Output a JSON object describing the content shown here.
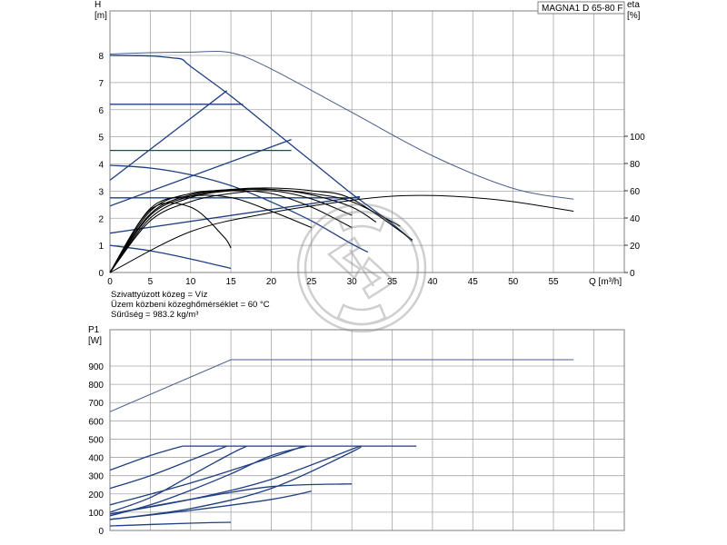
{
  "chart_data": [
    {
      "type": "line",
      "title": "MAGNA1 D 65-80 F",
      "xlabel": "Q [m³/h]",
      "ylabel": "H\n[m]",
      "y2label": "eta\n[%]",
      "xlim": [
        0,
        63
      ],
      "ylim": [
        0,
        8.7
      ],
      "y2lim": [
        0,
        120
      ],
      "x_ticks": [
        0,
        5,
        10,
        15,
        20,
        25,
        30,
        35,
        40,
        45,
        50,
        55
      ],
      "y_ticks": [
        0,
        1,
        2,
        3,
        4,
        5,
        6,
        7,
        8
      ],
      "y2_ticks": [
        0,
        20,
        40,
        60,
        80,
        100
      ],
      "grid": true,
      "info_lines": [
        "Szivattyúzott közeg = Víz",
        "Üzem közbeni közeghőmérséklet = 60 °C",
        "Sűrűség = 983.2 kg/m³"
      ],
      "series": [
        {
          "kind": "head-max-twin",
          "color": "#4a5f8c",
          "x": [
            0,
            5,
            10,
            15,
            20,
            30,
            40,
            50,
            57.5
          ],
          "y": [
            8.05,
            8.1,
            8.12,
            8.1,
            7.5,
            5.9,
            4.3,
            3.1,
            2.7
          ]
        },
        {
          "kind": "head-prop-max",
          "color": "#1f3f82",
          "x": [
            0,
            5,
            8,
            9,
            10,
            15,
            20,
            25,
            30,
            35,
            37.5
          ],
          "y": [
            8,
            7.98,
            7.9,
            7.85,
            7.6,
            6.5,
            5.3,
            4.1,
            2.9,
            1.8,
            1.15
          ]
        },
        {
          "kind": "const-pressure",
          "color": "#1f3f82",
          "x": [
            0,
            16.5
          ],
          "y": [
            6.2,
            6.2
          ]
        },
        {
          "kind": "const-pressure",
          "color": "#1f3f82",
          "x": [
            0,
            22.5
          ],
          "y": [
            4.5,
            4.5
          ]
        },
        {
          "kind": "const-pressure",
          "color": "#1f3f82",
          "x": [
            0,
            31
          ],
          "y": [
            2.75,
            2.75
          ]
        },
        {
          "kind": "prop-pressure",
          "color": "#1f3f82",
          "x": [
            0,
            14.5
          ],
          "y": [
            3.4,
            6.7
          ]
        },
        {
          "kind": "prop-pressure",
          "color": "#1f3f82",
          "x": [
            0,
            22.5
          ],
          "y": [
            2.45,
            4.9
          ]
        },
        {
          "kind": "prop-pressure",
          "color": "#1f3f82",
          "x": [
            0,
            31
          ],
          "y": [
            1.45,
            2.8
          ]
        },
        {
          "kind": "min-curve",
          "color": "#1f3f82",
          "x": [
            0,
            5,
            10,
            15,
            20,
            25,
            30,
            32
          ],
          "y": [
            3.95,
            3.85,
            3.6,
            3.2,
            2.6,
            1.9,
            1.05,
            0.75
          ]
        },
        {
          "kind": "min-curve",
          "color": "#1f3f82",
          "x": [
            0,
            5,
            10,
            15
          ],
          "y": [
            1.0,
            0.8,
            0.5,
            0.15
          ]
        },
        {
          "kind": "eta-twin",
          "color": "#000000",
          "x": [
            0,
            10,
            20,
            30,
            35,
            40,
            45,
            50,
            57.5
          ],
          "y": [
            0,
            30,
            44,
            53,
            56,
            56.5,
            55,
            52,
            45
          ]
        },
        {
          "kind": "eta",
          "color": "#000000",
          "x": [
            0,
            5,
            10,
            15,
            20,
            25,
            30,
            33
          ],
          "y": [
            0,
            40,
            55,
            60,
            61,
            57,
            48,
            37
          ]
        },
        {
          "kind": "eta",
          "color": "#000000",
          "x": [
            0,
            5,
            10,
            15,
            20,
            25,
            30,
            36
          ],
          "y": [
            0,
            42,
            56,
            60.5,
            61,
            58,
            52,
            34
          ]
        },
        {
          "kind": "eta",
          "color": "#000000",
          "x": [
            0,
            5,
            10,
            15,
            20,
            25,
            30,
            37.5
          ],
          "y": [
            0,
            43,
            57,
            61,
            62,
            60,
            54,
            24
          ]
        },
        {
          "kind": "eta",
          "color": "#000000",
          "x": [
            0,
            5,
            10,
            15,
            20,
            25,
            30
          ],
          "y": [
            0,
            45,
            58,
            60,
            58,
            48,
            33
          ]
        },
        {
          "kind": "eta",
          "color": "#000000",
          "x": [
            0,
            5,
            10,
            15,
            20,
            25
          ],
          "y": [
            0,
            47,
            56,
            55,
            45,
            33
          ]
        },
        {
          "kind": "eta",
          "color": "#000000",
          "x": [
            0,
            5,
            10,
            14,
            15
          ],
          "y": [
            0,
            46,
            48,
            27,
            18
          ]
        },
        {
          "kind": "eta",
          "color": "#000000",
          "x": [
            0,
            5,
            10,
            15,
            20,
            25,
            30
          ],
          "y": [
            0,
            38,
            52,
            58,
            60,
            54,
            42
          ]
        }
      ]
    },
    {
      "type": "line",
      "title": "",
      "xlabel": "",
      "ylabel": "P1\n[W]",
      "xlim": [
        0,
        63
      ],
      "ylim": [
        0,
        1000
      ],
      "y_ticks": [
        0,
        100,
        200,
        300,
        400,
        500,
        600,
        700,
        800,
        900
      ],
      "grid": true,
      "series": [
        {
          "kind": "p1-max-twin",
          "color": "#4a5f8c",
          "x": [
            0,
            15,
            57.5
          ],
          "y": [
            650,
            935,
            935
          ]
        },
        {
          "kind": "p1-max",
          "color": "#1f3f82",
          "x": [
            9,
            38
          ],
          "y": [
            462,
            462
          ]
        },
        {
          "kind": "p1",
          "color": "#1f3f82",
          "x": [
            0,
            5,
            9
          ],
          "y": [
            330,
            410,
            462
          ]
        },
        {
          "kind": "p1",
          "color": "#1f3f82",
          "x": [
            0,
            5,
            10,
            14.5
          ],
          "y": [
            230,
            300,
            385,
            462
          ]
        },
        {
          "kind": "p1",
          "color": "#1f3f82",
          "x": [
            0,
            10,
            20,
            24
          ],
          "y": [
            140,
            260,
            400,
            462
          ]
        },
        {
          "kind": "p1",
          "color": "#1f3f82",
          "x": [
            0,
            10,
            20,
            31
          ],
          "y": [
            90,
            170,
            280,
            462
          ]
        },
        {
          "kind": "p1",
          "color": "#1f3f82",
          "x": [
            0,
            5,
            10,
            15,
            17
          ],
          "y": [
            100,
            180,
            300,
            420,
            462
          ]
        },
        {
          "kind": "p1",
          "color": "#1f3f82",
          "x": [
            0,
            5,
            10,
            15,
            20,
            24.5
          ],
          "y": [
            80,
            140,
            220,
            310,
            410,
            462
          ]
        },
        {
          "kind": "p1",
          "color": "#1f3f82",
          "x": [
            0,
            10,
            20,
            30,
            31
          ],
          "y": [
            60,
            120,
            230,
            430,
            462
          ]
        },
        {
          "kind": "p1",
          "color": "#1f3f82",
          "x": [
            0,
            10,
            20,
            30
          ],
          "y": [
            90,
            170,
            240,
            255
          ]
        },
        {
          "kind": "p1",
          "color": "#1f3f82",
          "x": [
            0,
            10,
            20,
            25
          ],
          "y": [
            60,
            110,
            170,
            215
          ]
        },
        {
          "kind": "p1",
          "color": "#1f3f82",
          "x": [
            0,
            10,
            15
          ],
          "y": [
            25,
            40,
            45
          ]
        }
      ]
    }
  ],
  "watermark": {
    "shape": "trademark-circle"
  }
}
